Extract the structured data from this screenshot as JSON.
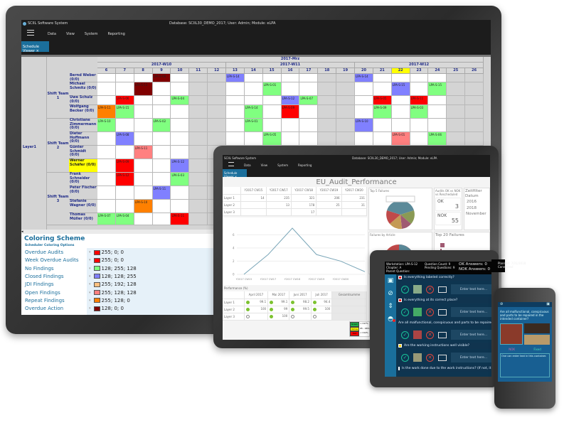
{
  "app": {
    "title": "SCIIL Software System",
    "status": "Database: SCIIL30_DEMO_2017; User: Admin; Module: eLPA",
    "menu": [
      "Data",
      "View",
      "System",
      "Reporting"
    ],
    "tab": "Schedule Viewer",
    "tab_close": "×"
  },
  "schedule": {
    "month": "2017-Mrz",
    "weeks": [
      {
        "label": "2017-W10",
        "days": [
          6,
          7,
          8,
          9,
          10,
          11,
          12
        ]
      },
      {
        "label": "2017-W11",
        "days": [
          13,
          14,
          15,
          16,
          17,
          18,
          19
        ]
      },
      {
        "label": "2017-W12",
        "days": [
          20,
          21,
          22,
          23,
          24,
          25,
          26
        ]
      }
    ],
    "weekend_days": [
      11,
      12,
      18,
      19,
      25,
      26
    ],
    "today": 22,
    "layer": "Layer1",
    "colors": {
      "red": "#ff0000",
      "dark_red": "#800000",
      "green": "#80ff80",
      "blue": "#8080ff",
      "pink": "#ff8080",
      "orange": "#ff8000",
      "today": "#ffff00"
    },
    "teams": [
      {
        "name": "Shift Team 1",
        "people": [
          {
            "name": "Bernd Weber (0/0)",
            "audits": [
              [
                9,
                "LPA-S-08",
                "dark_red"
              ],
              [
                13,
                "LPA-S-14",
                "blue"
              ],
              [
                20,
                "LPA-S-14",
                "blue"
              ]
            ]
          },
          {
            "name": "Michael Schmitz (0/0)",
            "audits": [
              [
                8,
                "LPA-S-13",
                "dark_red"
              ],
              [
                15,
                "LPA-S-01",
                "green"
              ],
              [
                22,
                "LPA-S-15",
                "blue"
              ],
              [
                24,
                "LPA-S-15",
                "green"
              ]
            ]
          },
          {
            "name": "Uwe Schulz (0/0)",
            "audits": [
              [
                7,
                "LPA-S-06",
                "red"
              ],
              [
                10,
                "LPA-S-04",
                "green"
              ],
              [
                16,
                "LPA-S-12",
                "blue"
              ],
              [
                17,
                "LPA-S-07",
                "green"
              ],
              [
                21,
                "LPA-S-05",
                "red"
              ],
              [
                23,
                "LPA-S-11",
                "red"
              ]
            ]
          },
          {
            "name": "Wolfgang Becker (0/0)",
            "audits": [
              [
                6,
                "LPA-S-11",
                "orange"
              ],
              [
                7,
                "LPA-S-15",
                "green"
              ],
              [
                14,
                "LPA-S-14",
                "green"
              ],
              [
                16,
                "LPA-S-09",
                "red"
              ],
              [
                21,
                "LPA-S-09",
                "green"
              ],
              [
                23,
                "LPA-S-03",
                "green"
              ]
            ]
          }
        ]
      },
      {
        "name": "Shift Team 2",
        "people": [
          {
            "name": "Christiane Zimmermann (0/0)",
            "audits": [
              [
                6,
                "LPA-S-10",
                "green"
              ],
              [
                9,
                "LPA-S-02",
                "green"
              ],
              [
                14,
                "LPA-S-01",
                "green"
              ],
              [
                20,
                "LPA-S-10",
                "blue"
              ]
            ]
          },
          {
            "name": "Dieter Hoffmann (0/0)",
            "audits": [
              [
                7,
                "LPA-S-08",
                "blue"
              ],
              [
                15,
                "LPA-S-05",
                "green"
              ],
              [
                22,
                "LPA-S-01",
                "pink"
              ],
              [
                24,
                "LPA-S-06",
                "green"
              ]
            ]
          },
          {
            "name": "Günter Schmidt (0/0)",
            "audits": [
              [
                8,
                "LPA-S-11",
                "pink"
              ]
            ]
          },
          {
            "name": "Werner Schäfer (0/0)",
            "highlight": true,
            "audits": [
              [
                7,
                "LPA-S-09",
                "red"
              ],
              [
                10,
                "LPA-S-12",
                "blue"
              ]
            ]
          }
        ]
      },
      {
        "name": "Shift Team 3",
        "people": [
          {
            "name": "Frank Schneider (0/0)",
            "audits": [
              [
                7,
                "LPA-S-12",
                "red"
              ],
              [
                10,
                "LPA-S-03",
                "green"
              ]
            ]
          },
          {
            "name": "Peter Fischer (0/0)",
            "audits": [
              [
                9,
                "LPA-S-11",
                "blue"
              ]
            ]
          },
          {
            "name": "Stefanie Wagner (0/0)",
            "audits": [
              [
                8,
                "LPA-S-10",
                "orange"
              ]
            ]
          },
          {
            "name": "Thomas Müller (0/0)",
            "audits": [
              [
                6,
                "LPA-S-07",
                "green"
              ],
              [
                7,
                "LPA-S-04",
                "green"
              ],
              [
                10,
                "LPA-S-11",
                "red"
              ]
            ]
          }
        ]
      }
    ]
  },
  "coloring": {
    "title": "Coloring Scheme",
    "subtitle": "Scheduler Coloring Options",
    "items": [
      {
        "label": "Overdue Audits",
        "value": "255; 0; 0",
        "color": "#ff0000"
      },
      {
        "label": "Week Overdue Audits",
        "value": "255; 0; 0",
        "color": "#ff0000"
      },
      {
        "label": "No Findings",
        "value": "128; 255; 128",
        "color": "#80ff80"
      },
      {
        "label": "Closed Findings",
        "value": "128; 128; 255",
        "color": "#8080ff"
      },
      {
        "label": "JDI Findings",
        "value": "255; 192; 128",
        "color": "#ffc080"
      },
      {
        "label": "Open Findings",
        "value": "255; 128; 128",
        "color": "#ff8080"
      },
      {
        "label": "Repeat Findings",
        "value": "255; 128; 0",
        "color": "#ff8000"
      },
      {
        "label": "Overdue Action",
        "value": "128; 0; 0",
        "color": "#800000"
      }
    ]
  },
  "dashboard": {
    "title": "EU_Audit_Performance",
    "status": "Database: SCIIL30_DEMO_2017; User: Admin; Module: eLPA",
    "table": {
      "columns": [
        "Y2017 CW15",
        "Y2017 CW17",
        "Y2017 CW18",
        "Y2017 CW19",
        "Y2017 CW20"
      ],
      "rows": [
        [
          "Layer 1",
          "14",
          "235",
          "321",
          "206",
          "231"
        ],
        [
          "Layer 2",
          "",
          "13",
          "178",
          "25",
          "31"
        ],
        [
          "Layer 3",
          "",
          "",
          "17",
          "",
          ""
        ]
      ]
    },
    "line_chart": {
      "x": [
        "Y2017 CW15",
        "Y2017 CW17",
        "Y2017 CW18",
        "Y2017 CW19",
        "Y2017 CW20",
        ""
      ],
      "y": [
        0,
        3,
        7,
        3,
        2,
        0.4
      ],
      "yticks": [
        0,
        2,
        4,
        6
      ],
      "color": "#7aa6b8"
    },
    "performance": {
      "title": "Performance (%)",
      "columns": [
        "April 2017",
        "Mai 2017",
        "Juni 2017",
        "Juli 2017",
        "Gesamtsumme"
      ],
      "rows": [
        {
          "label": "Layer 1",
          "cells": [
            [
              "green",
              "99.1"
            ],
            [
              "green",
              "99.1"
            ],
            [
              "green",
              "98.2"
            ],
            [
              "green",
              "94.4"
            ]
          ]
        },
        {
          "label": "Layer 2",
          "cells": [
            [
              "green",
              "100"
            ],
            [
              "green",
              "99"
            ],
            [
              "green",
              "99.5"
            ],
            [
              "green",
              "100"
            ]
          ]
        },
        {
          "label": "Layer 3",
          "cells": [
            [
              "empty",
              ""
            ],
            [
              "green",
              "100"
            ],
            [
              "empty",
              ""
            ],
            [
              "empty",
              ""
            ]
          ]
        }
      ]
    },
    "legend": [
      {
        "label": "Green",
        "range": ">=97%",
        "color": "#22b14c"
      },
      {
        "label": "Yellow",
        "range": "95 - 96%",
        "color": "#ffff00"
      },
      {
        "label": "Red",
        "range": "<=94%",
        "color": "#ff0000"
      }
    ],
    "panels": {
      "top5": "Top 5 Failures",
      "audits": "Audits OK vs NOK vs Rescheduled",
      "filter": "Zeitfilter Datum",
      "by_article": "Failures by Article",
      "top20": "Top 20 Failures",
      "ok_label": "OK",
      "ok_value": "3",
      "nok_label": "NOK",
      "nok_value": "55",
      "filter_items": [
        "2016",
        "2018",
        "November"
      ]
    }
  },
  "mobile": {
    "workstation": "Workstation: LPA-S-12",
    "chapter": "Chapter: A",
    "parent": "Parent Question:",
    "question_count": "Question Count: 9",
    "pending": "Pending Questions: 9",
    "ok_answers": "OK Answers: 0",
    "nok_answers": "NOK Answers: 0",
    "planned": "Planned: 7/31/2018",
    "connection": "Connected",
    "placeholder": "Enter text here...",
    "questions": [
      "Is everything labeled correctly?",
      "Is everything at its correct place?",
      "Are all malfunctional, conspicuous and parts to be repaired in the intended container?",
      "Are the working instructions well visible?",
      "Is the work done due to the work instructions? (If not, it has to be documented)"
    ]
  },
  "phone": {
    "question": "Are all malfunctional, conspicuous and parts to be repaired in the intended container?",
    "nok": "NOK",
    "fixed": "Fixed",
    "note": "One can enter text in this container."
  }
}
